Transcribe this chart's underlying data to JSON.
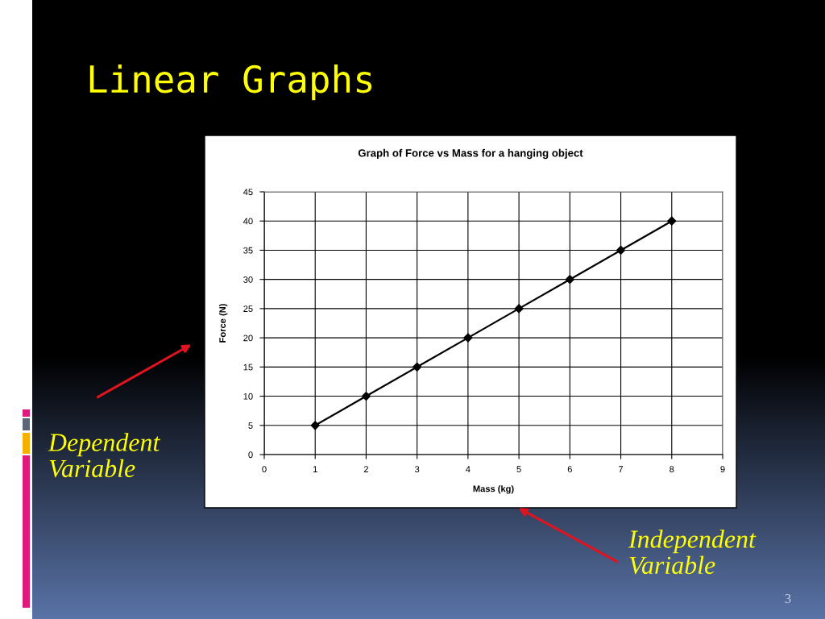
{
  "chart_data": {
    "type": "line",
    "title": "Graph of Force vs Mass for a hanging object",
    "xlabel": "Mass (kg)",
    "ylabel": "Force (N)",
    "x": [
      1,
      2,
      3,
      4,
      5,
      6,
      7,
      8
    ],
    "series": [
      {
        "color": "#000000",
        "values": [
          5,
          10,
          15,
          20,
          25,
          30,
          35,
          40
        ]
      }
    ],
    "xlim": [
      0,
      9
    ],
    "xticks": [
      0,
      1,
      2,
      3,
      4,
      5,
      6,
      7,
      8,
      9
    ],
    "ylim": [
      0,
      45
    ],
    "yticks": [
      0,
      5,
      10,
      15,
      20,
      25,
      30,
      35,
      40,
      45
    ],
    "grid": true,
    "marker": "diamond",
    "line_style": "solid",
    "annotations": [
      "Linear Graphs",
      "Dependent\nVariable",
      "Independent\nVariable",
      "3"
    ]
  }
}
